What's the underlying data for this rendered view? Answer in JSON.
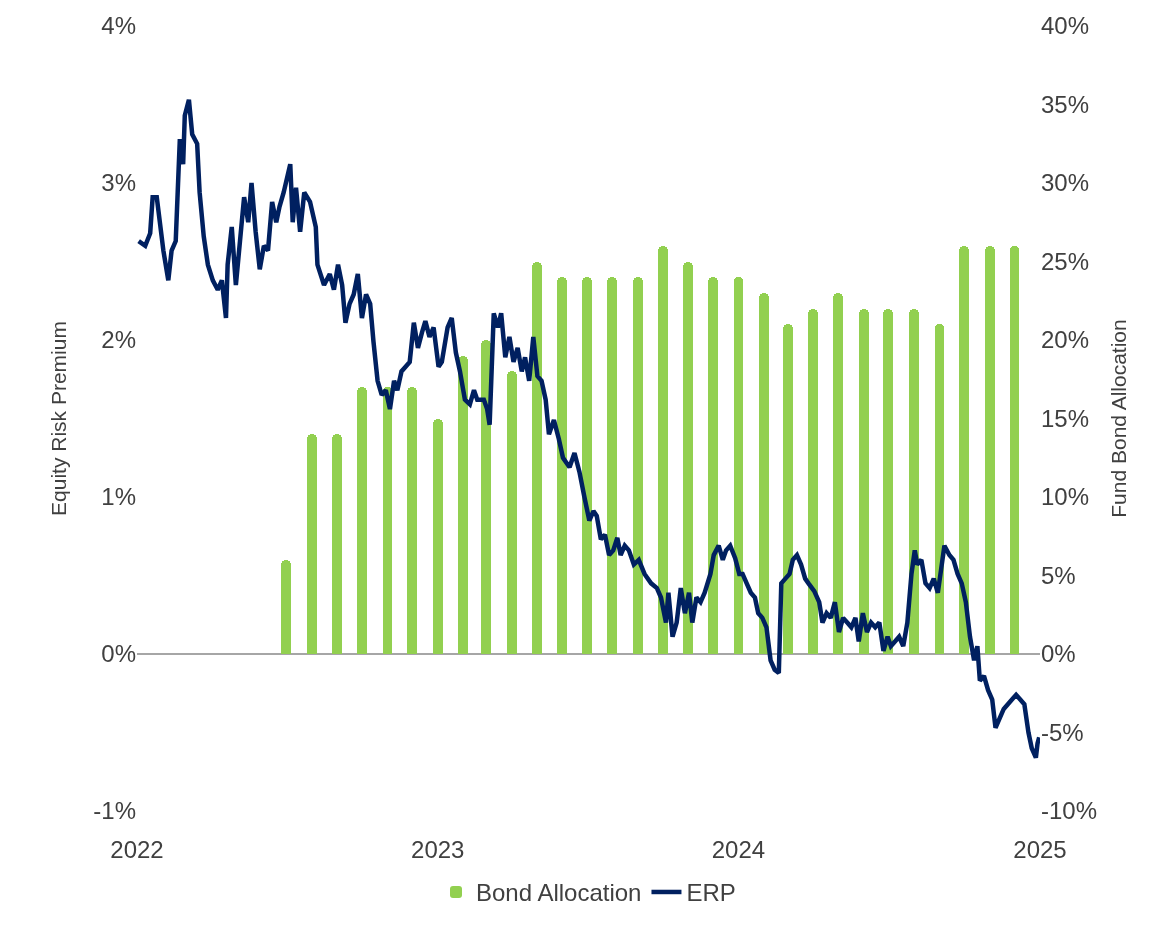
{
  "chart_data": {
    "type": "bar",
    "ylabel": "Equity Risk Premium",
    "y2label": "Fund Bond Allocation",
    "xlim": [
      "2022-01-01",
      "2025-01-01"
    ],
    "xticks": [
      {
        "value": "2022-01-01",
        "label": "2022"
      },
      {
        "value": "2023-01-01",
        "label": "2023"
      },
      {
        "value": "2024-01-01",
        "label": "2024"
      },
      {
        "value": "2025-01-01",
        "label": "2025"
      }
    ],
    "ylim": [
      -1,
      4
    ],
    "yticks": [
      {
        "value": -1,
        "label": "-1%"
      },
      {
        "value": 0,
        "label": "0%"
      },
      {
        "value": 1,
        "label": "1%"
      },
      {
        "value": 2,
        "label": "2%"
      },
      {
        "value": 3,
        "label": "3%"
      },
      {
        "value": 4,
        "label": "4%"
      }
    ],
    "y2lim": [
      -10,
      40
    ],
    "y2ticks": [
      {
        "value": -10,
        "label": "-10%"
      },
      {
        "value": -5,
        "label": "-5%"
      },
      {
        "value": 0,
        "label": "0%"
      },
      {
        "value": 5,
        "label": "5%"
      },
      {
        "value": 10,
        "label": "10%"
      },
      {
        "value": 15,
        "label": "15%"
      },
      {
        "value": 20,
        "label": "20%"
      },
      {
        "value": 25,
        "label": "25%"
      },
      {
        "value": 30,
        "label": "30%"
      },
      {
        "value": 35,
        "label": "35%"
      },
      {
        "value": 40,
        "label": "40%"
      }
    ],
    "grid": false,
    "legend": "bottom",
    "ref_lines": [
      {
        "axis": "y",
        "value": 0,
        "color": "#a6a6a6"
      }
    ],
    "series": [
      {
        "name": "Bond Allocation",
        "axis": "y2",
        "color": "#92d050",
        "x": [
          "2022-07-01",
          "2022-08-01",
          "2022-09-01",
          "2022-10-01",
          "2022-11-01",
          "2022-12-01",
          "2023-01-01",
          "2023-02-01",
          "2023-03-01",
          "2023-04-01",
          "2023-05-01",
          "2023-06-01",
          "2023-07-01",
          "2023-08-01",
          "2023-09-01",
          "2023-10-01",
          "2023-11-01",
          "2023-12-01",
          "2024-01-01",
          "2024-02-01",
          "2024-03-01",
          "2024-04-01",
          "2024-05-01",
          "2024-06-01",
          "2024-07-01",
          "2024-08-01",
          "2024-09-01",
          "2024-10-01",
          "2024-11-01",
          "2024-12-01"
        ],
        "values": [
          6,
          14,
          14,
          17,
          17,
          17,
          15,
          19,
          20,
          18,
          25,
          24,
          24,
          24,
          24,
          26,
          25,
          24,
          24,
          23,
          21,
          22,
          23,
          22,
          22,
          22,
          21,
          26,
          26,
          26
        ]
      },
      {
        "name": "ERP",
        "type": "line",
        "color": "#002060",
        "marker": "none",
        "line_style": "solid",
        "x": [
          "2022-01-03",
          "2022-01-11",
          "2022-01-17",
          "2022-01-20",
          "2022-01-25",
          "2022-02-02",
          "2022-02-08",
          "2022-02-12",
          "2022-02-17",
          "2022-02-22",
          "2022-02-26",
          "2022-02-28",
          "2022-03-05",
          "2022-03-09",
          "2022-03-15",
          "2022-03-18",
          "2022-03-23",
          "2022-03-28",
          "2022-04-03",
          "2022-04-09",
          "2022-04-14",
          "2022-04-19",
          "2022-04-21",
          "2022-04-26",
          "2022-05-01",
          "2022-05-06",
          "2022-05-11",
          "2022-05-16",
          "2022-05-20",
          "2022-05-25",
          "2022-05-30",
          "2022-06-04",
          "2022-06-09",
          "2022-06-14",
          "2022-06-19",
          "2022-06-23",
          "2022-06-28",
          "2022-07-06",
          "2022-07-09",
          "2022-07-13",
          "2022-07-18",
          "2022-07-23",
          "2022-07-30",
          "2022-08-06",
          "2022-08-08",
          "2022-08-16",
          "2022-08-23",
          "2022-08-28",
          "2022-09-02",
          "2022-09-07",
          "2022-09-11",
          "2022-09-16",
          "2022-09-21",
          "2022-09-26",
          "2022-10-01",
          "2022-10-06",
          "2022-10-11",
          "2022-10-15",
          "2022-10-20",
          "2022-10-25",
          "2022-10-30",
          "2022-11-04",
          "2022-11-09",
          "2022-11-13",
          "2022-11-18",
          "2022-11-23",
          "2022-11-28",
          "2022-12-03",
          "2022-12-08",
          "2022-12-13",
          "2022-12-17",
          "2022-12-22",
          "2022-12-27",
          "2023-01-02",
          "2023-01-06",
          "2023-01-13",
          "2023-01-18",
          "2023-01-23",
          "2023-01-28",
          "2023-02-03",
          "2023-02-09",
          "2023-02-14",
          "2023-02-18",
          "2023-02-26",
          "2023-03-02",
          "2023-03-05",
          "2023-03-10",
          "2023-03-15",
          "2023-03-19",
          "2023-03-24",
          "2023-03-29",
          "2023-04-03",
          "2023-04-08",
          "2023-04-13",
          "2023-04-17",
          "2023-04-22",
          "2023-04-27",
          "2023-05-02",
          "2023-05-07",
          "2023-05-12",
          "2023-05-16",
          "2023-05-22",
          "2023-05-28",
          "2023-06-02",
          "2023-06-10",
          "2023-06-16",
          "2023-06-22",
          "2023-06-28",
          "2023-07-04",
          "2023-07-09",
          "2023-07-13",
          "2023-07-18",
          "2023-07-23",
          "2023-07-28",
          "2023-08-02",
          "2023-08-07",
          "2023-08-11",
          "2023-08-16",
          "2023-08-21",
          "2023-08-27",
          "2023-09-02",
          "2023-09-09",
          "2023-09-17",
          "2023-09-24",
          "2023-09-29",
          "2023-10-05",
          "2023-10-08",
          "2023-10-13",
          "2023-10-18",
          "2023-10-23",
          "2023-10-28",
          "2023-11-02",
          "2023-11-06",
          "2023-11-11",
          "2023-11-16",
          "2023-11-21",
          "2023-11-28",
          "2023-12-02",
          "2023-12-08",
          "2023-12-13",
          "2023-12-17",
          "2023-12-22",
          "2023-12-28",
          "2024-01-02",
          "2024-01-06",
          "2024-01-11",
          "2024-01-16",
          "2024-01-21",
          "2024-01-25",
          "2024-01-30",
          "2024-02-04",
          "2024-02-09",
          "2024-02-14",
          "2024-02-19",
          "2024-02-22",
          "2024-02-27",
          "2024-03-03",
          "2024-03-07",
          "2024-03-12",
          "2024-03-17",
          "2024-03-22",
          "2024-03-26",
          "2024-04-02",
          "2024-04-08",
          "2024-04-12",
          "2024-04-17",
          "2024-04-22",
          "2024-04-27",
          "2024-05-02",
          "2024-05-07",
          "2024-05-12",
          "2024-05-17",
          "2024-05-22",
          "2024-05-26",
          "2024-05-31",
          "2024-06-05",
          "2024-06-10",
          "2024-06-15",
          "2024-06-20",
          "2024-06-25",
          "2024-06-30",
          "2024-07-04",
          "2024-07-09",
          "2024-07-14",
          "2024-07-19",
          "2024-07-24",
          "2024-07-29",
          "2024-08-02",
          "2024-08-05",
          "2024-08-10",
          "2024-08-15",
          "2024-08-20",
          "2024-08-25",
          "2024-08-30",
          "2024-09-03",
          "2024-09-07",
          "2024-09-13",
          "2024-09-18",
          "2024-09-23",
          "2024-09-28",
          "2024-10-03",
          "2024-10-08",
          "2024-10-13",
          "2024-10-17",
          "2024-10-20",
          "2024-10-25",
          "2024-10-30",
          "2024-11-04",
          "2024-11-08",
          "2024-11-13",
          "2024-11-18",
          "2024-11-23",
          "2024-11-28",
          "2024-12-03",
          "2024-12-08",
          "2024-12-13",
          "2024-12-18",
          "2024-12-22",
          "2024-12-27",
          "2024-12-29",
          "2024-12-31"
        ],
        "values": [
          2.63,
          2.6,
          2.68,
          2.91,
          2.91,
          2.57,
          2.38,
          2.57,
          2.63,
          3.28,
          3.12,
          3.43,
          3.53,
          3.31,
          3.25,
          2.94,
          2.66,
          2.48,
          2.38,
          2.32,
          2.38,
          2.14,
          2.48,
          2.72,
          2.35,
          2.63,
          2.91,
          2.75,
          3.0,
          2.69,
          2.45,
          2.6,
          2.57,
          2.88,
          2.75,
          2.85,
          2.94,
          3.12,
          2.75,
          2.97,
          2.69,
          2.94,
          2.88,
          2.72,
          2.48,
          2.35,
          2.42,
          2.32,
          2.48,
          2.35,
          2.11,
          2.23,
          2.29,
          2.42,
          2.14,
          2.29,
          2.23,
          1.99,
          1.74,
          1.65,
          1.68,
          1.56,
          1.74,
          1.68,
          1.8,
          1.83,
          1.86,
          2.11,
          1.95,
          2.05,
          2.12,
          2.02,
          2.08,
          1.83,
          1.86,
          2.08,
          2.14,
          1.92,
          1.8,
          1.62,
          1.59,
          1.68,
          1.62,
          1.62,
          1.56,
          1.46,
          2.17,
          2.08,
          2.17,
          1.89,
          2.02,
          1.86,
          1.95,
          1.8,
          1.89,
          1.74,
          2.02,
          1.77,
          1.74,
          1.62,
          1.4,
          1.49,
          1.37,
          1.25,
          1.19,
          1.28,
          1.16,
          1.0,
          0.85,
          0.91,
          0.88,
          0.73,
          0.76,
          0.63,
          0.66,
          0.74,
          0.63,
          0.69,
          0.66,
          0.57,
          0.6,
          0.51,
          0.45,
          0.42,
          0.36,
          0.2,
          0.39,
          0.11,
          0.2,
          0.42,
          0.26,
          0.39,
          0.2,
          0.36,
          0.33,
          0.39,
          0.51,
          0.63,
          0.69,
          0.6,
          0.66,
          0.69,
          0.61,
          0.51,
          0.51,
          0.45,
          0.39,
          0.36,
          0.26,
          0.23,
          0.17,
          -0.04,
          -0.1,
          -0.12,
          0.45,
          0.48,
          0.51,
          0.6,
          0.63,
          0.57,
          0.48,
          0.45,
          0.4,
          0.33,
          0.2,
          0.26,
          0.23,
          0.33,
          0.14,
          0.23,
          0.2,
          0.17,
          0.23,
          0.08,
          0.26,
          0.14,
          0.2,
          0.17,
          0.2,
          0.02,
          0.11,
          0.05,
          0.08,
          0.11,
          0.05,
          0.2,
          0.51,
          0.66,
          0.57,
          0.6,
          0.45,
          0.42,
          0.48,
          0.39,
          0.54,
          0.69,
          0.63,
          0.6,
          0.51,
          0.45,
          0.33,
          0.11,
          -0.04,
          0.05,
          -0.17,
          -0.14,
          -0.23,
          -0.29,
          -0.47,
          -0.41,
          -0.35,
          -0.32,
          -0.29,
          -0.26,
          -0.29,
          -0.32,
          -0.5,
          -0.6,
          -0.66,
          -0.57,
          -0.53
        ]
      }
    ]
  }
}
